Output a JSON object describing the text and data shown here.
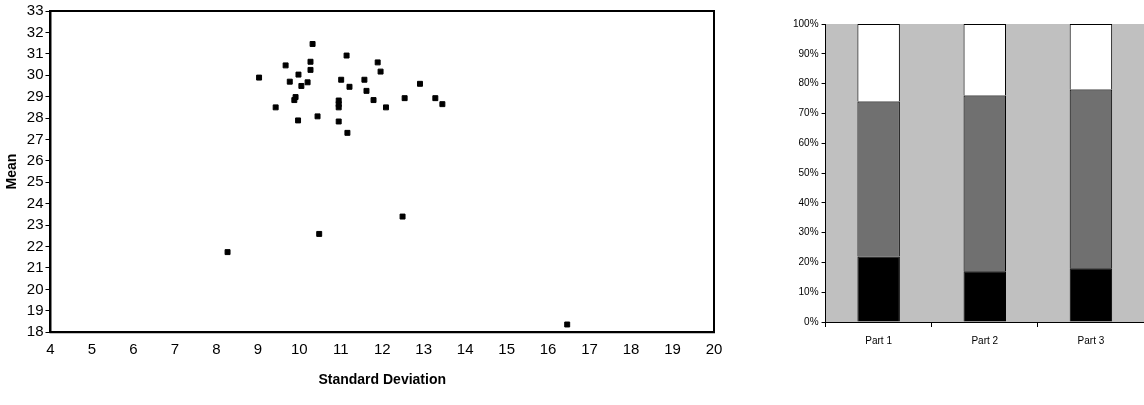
{
  "chart_data": [
    {
      "type": "scatter",
      "xlabel": "Standard Deviation",
      "ylabel": "Mean",
      "color": "#000000",
      "marker": "square",
      "grid": false,
      "x": [
        9.03,
        9.43,
        9.67,
        9.77,
        9.88,
        9.91,
        9.98,
        9.97,
        10.05,
        10.2,
        10.27,
        10.27,
        10.32,
        10.44,
        10.95,
        10.95,
        10.95,
        10.95,
        11.01,
        11.14,
        11.21,
        11.16,
        11.57,
        11.62,
        11.79,
        11.89,
        11.96,
        12.09,
        12.54,
        12.91,
        13.28,
        13.45,
        8.27,
        10.48,
        12.49,
        16.46
      ],
      "values": [
        29.89,
        28.5,
        30.46,
        29.7,
        28.84,
        28.98,
        30.03,
        27.89,
        29.5,
        29.67,
        30.25,
        30.63,
        31.46,
        28.08,
        28.82,
        28.65,
        28.5,
        27.84,
        29.79,
        30.92,
        29.46,
        27.31,
        29.79,
        29.27,
        28.84,
        30.6,
        30.17,
        28.5,
        28.93,
        29.6,
        28.93,
        28.65,
        21.74,
        22.59,
        23.4,
        18.36
      ],
      "xlim": [
        4,
        20
      ],
      "xticks": [
        4,
        5,
        6,
        7,
        8,
        9,
        10,
        11,
        12,
        13,
        14,
        15,
        16,
        17,
        18,
        19,
        20
      ],
      "ylim": [
        18,
        33
      ],
      "yticks": [
        18,
        19,
        20,
        21,
        22,
        23,
        24,
        25,
        26,
        27,
        28,
        29,
        30,
        31,
        32,
        33
      ]
    },
    {
      "type": "bar",
      "stacked": true,
      "grid": false,
      "categories": [
        "Part 1",
        "Part 2",
        "Part 3"
      ],
      "series": [
        {
          "color": "#000000",
          "values": [
            22,
            17,
            18
          ]
        },
        {
          "color": "#707070",
          "values": [
            52,
            59,
            60
          ]
        },
        {
          "color": "#ffffff",
          "values": [
            26,
            24,
            22
          ]
        }
      ],
      "ylim": [
        0,
        100
      ],
      "yticks": [
        {
          "value": 0,
          "label": "0%"
        },
        {
          "value": 10,
          "label": "10%"
        },
        {
          "value": 20,
          "label": "20%"
        },
        {
          "value": 30,
          "label": "30%"
        },
        {
          "value": 40,
          "label": "40%"
        },
        {
          "value": 50,
          "label": "50%"
        },
        {
          "value": 60,
          "label": "60%"
        },
        {
          "value": 70,
          "label": "70%"
        },
        {
          "value": 80,
          "label": "80%"
        },
        {
          "value": 90,
          "label": "90%"
        },
        {
          "value": 100,
          "label": "100%"
        }
      ]
    }
  ]
}
